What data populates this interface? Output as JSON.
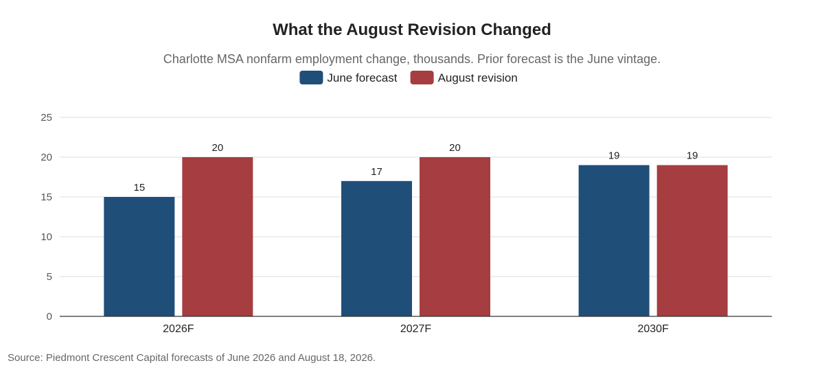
{
  "chart_data": {
    "type": "bar",
    "title": "What the August Revision Changed",
    "subtitle": "Charlotte MSA nonfarm employment change, thousands. Prior forecast is the June vintage.",
    "categories": [
      "2026F",
      "2027F",
      "2030F"
    ],
    "series": [
      {
        "name": "June forecast",
        "color": "#1f4e79",
        "values": [
          15,
          17,
          19
        ]
      },
      {
        "name": "August revision",
        "color": "#a63d40",
        "values": [
          20,
          20,
          19
        ]
      }
    ],
    "ylim": [
      0,
      25
    ],
    "yticks": [
      0,
      5,
      10,
      15,
      20,
      25
    ],
    "xlabel": "",
    "ylabel": "",
    "grid": true,
    "legend_position": "top-center",
    "data_labels": true,
    "source": "Source: Piedmont Crescent Capital forecasts of June 2026 and August 18, 2026."
  }
}
